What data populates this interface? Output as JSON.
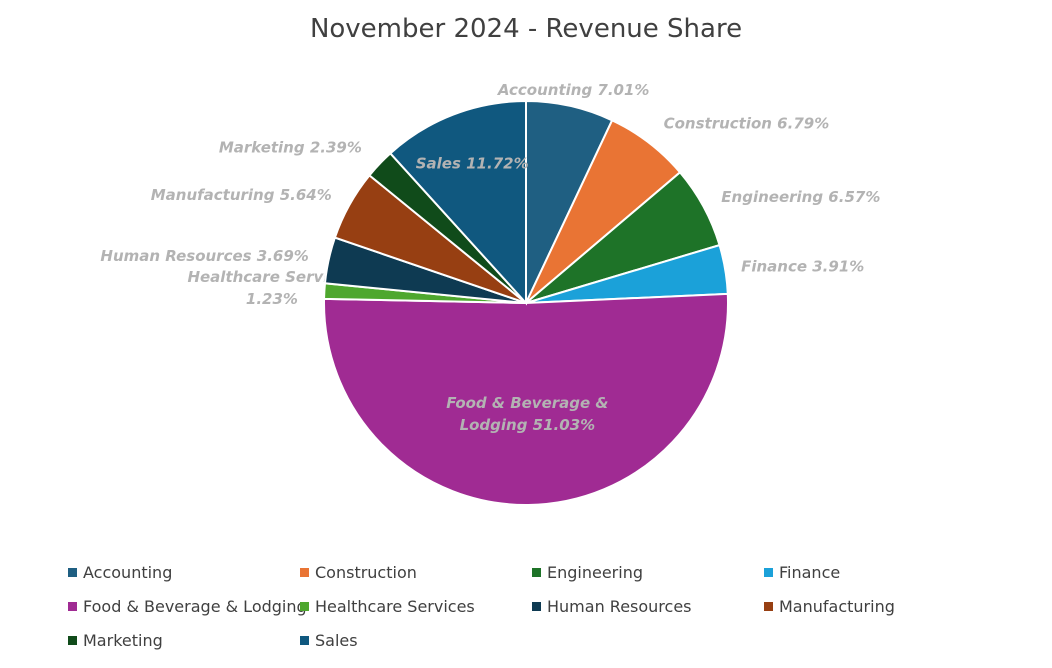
{
  "chart_data": {
    "type": "pie",
    "title": "November 2024 - Revenue Share",
    "slices": [
      {
        "name": "Accounting",
        "value": 7.01,
        "label": "Accounting 7.01%",
        "color": "#1f5f82"
      },
      {
        "name": "Construction",
        "value": 6.79,
        "label": "Construction 6.79%",
        "color": "#e97434"
      },
      {
        "name": "Engineering",
        "value": 6.57,
        "label": "Engineering 6.57%",
        "color": "#1e7328"
      },
      {
        "name": "Finance",
        "value": 3.91,
        "label": "Finance 3.91%",
        "color": "#1ba1d9"
      },
      {
        "name": "Food & Beverage & Lodging",
        "value": 51.03,
        "label": "Food & Beverage & Lodging 51.03%",
        "color": "#a02b93"
      },
      {
        "name": "Healthcare Services",
        "value": 1.23,
        "label": "Healthcare Services 1.23%",
        "color": "#4ea72e"
      },
      {
        "name": "Human Resources",
        "value": 3.69,
        "label": "Human Resources 3.69%",
        "color": "#0e3a52"
      },
      {
        "name": "Manufacturing",
        "value": 5.64,
        "label": "Manufacturing 5.64%",
        "color": "#973f12"
      },
      {
        "name": "Marketing",
        "value": 2.39,
        "label": "Marketing 2.39%",
        "color": "#104b1a"
      },
      {
        "name": "Sales",
        "value": 11.72,
        "label": "Sales 11.72%",
        "color": "#10587f"
      }
    ],
    "legend_position": "bottom"
  }
}
